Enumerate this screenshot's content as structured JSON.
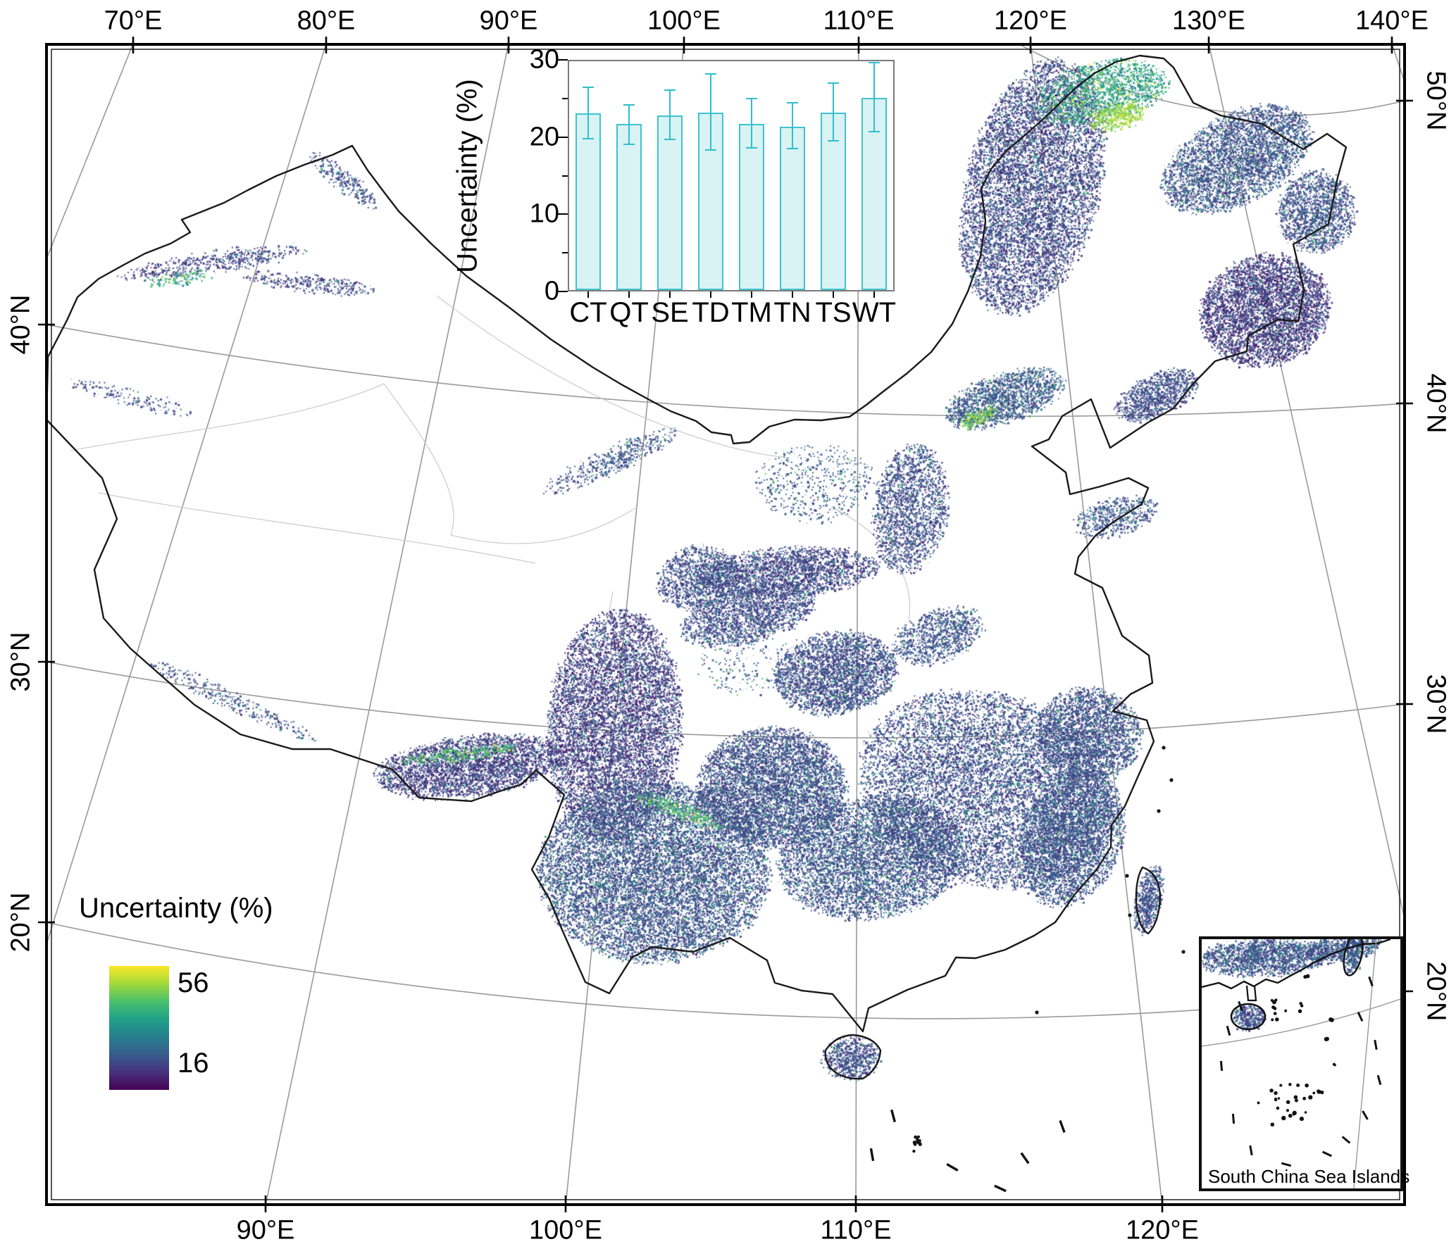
{
  "figure": {
    "kind": "uncertainty map of China with inset bar chart",
    "background": "#ffffff"
  },
  "axes": {
    "top": [
      {
        "label": "70°E"
      },
      {
        "label": "80°E"
      },
      {
        "label": "90°E"
      },
      {
        "label": "100°E"
      },
      {
        "label": "110°E"
      },
      {
        "label": "120°E"
      },
      {
        "label": "130°E"
      },
      {
        "label": "140°E"
      }
    ],
    "bottom": [
      {
        "label": "90°E"
      },
      {
        "label": "100°E"
      },
      {
        "label": "110°E"
      },
      {
        "label": "120°E"
      }
    ],
    "left": [
      {
        "label": "40°N"
      },
      {
        "label": "30°N"
      },
      {
        "label": "20°N"
      }
    ],
    "right": [
      {
        "label": "50°N"
      },
      {
        "label": "40°N"
      },
      {
        "label": "30°N"
      },
      {
        "label": "20°N"
      }
    ]
  },
  "chart_data": {
    "type": "bar",
    "title": "",
    "xlabel": "",
    "ylabel": "Uncertainty (%)",
    "categories": [
      "CT",
      "QT",
      "SE",
      "TD",
      "TM",
      "TN",
      "TS",
      "WT"
    ],
    "values": [
      22.9,
      21.5,
      22.6,
      23.0,
      21.5,
      21.2,
      23.0,
      24.9
    ],
    "error_low": [
      3.2,
      2.5,
      3.0,
      4.8,
      3.0,
      2.8,
      3.6,
      4.3
    ],
    "error_high": [
      3.3,
      2.4,
      3.2,
      4.9,
      3.2,
      3.0,
      3.7,
      4.5
    ],
    "ylim": [
      0,
      30
    ],
    "yticks": [
      0,
      10,
      20,
      30
    ],
    "yticks_minor": [
      5,
      15,
      25
    ],
    "grid": false,
    "legend_position": "none",
    "bar_fill": "#d9f2f3",
    "bar_edge": "#3fc3cf",
    "error_color": "#2fbfcb"
  },
  "legend": {
    "title": "Uncertainty (%)",
    "max_label": "56",
    "min_label": "16",
    "colors_top_to_bottom": [
      "#fde725",
      "#a0da39",
      "#4ac16d",
      "#1fa187",
      "#277f8e",
      "#365c8d",
      "#46327e",
      "#440154"
    ]
  },
  "inset": {
    "label": "South China Sea Islands",
    "regions": [
      [
        "inset-coast",
        88,
        25,
        92,
        26,
        -3,
        2400,
        0.3,
        0.34
      ],
      [
        "inset-coast2",
        198,
        12,
        55,
        18,
        -8,
        900,
        0.3,
        0.32
      ],
      [
        "inset-hainan",
        66,
        110,
        22,
        17,
        0,
        420,
        0.26,
        0.3
      ],
      [
        "inset-taiwan",
        215,
        22,
        11,
        28,
        12,
        300,
        0.3,
        0.3
      ]
    ]
  },
  "map_regions_format": "[name, cx, cy, rx, ry, rot_deg, n_dots, color_bias_0to1, color_spread]",
  "map_regions": [
    [
      "tianshan-a",
      300,
      372,
      135,
      14,
      -8,
      700,
      0.22,
      0.3
    ],
    [
      "tianshan-b",
      440,
      402,
      95,
      11,
      6,
      450,
      0.24,
      0.3
    ],
    [
      "tianshan-green",
      255,
      395,
      45,
      8,
      -8,
      160,
      0.62,
      0.25
    ],
    [
      "altai",
      487,
      255,
      60,
      13,
      38,
      350,
      0.28,
      0.3
    ],
    [
      "kunlun-west",
      190,
      565,
      95,
      12,
      14,
      200,
      0.25,
      0.25
    ],
    [
      "qilian",
      865,
      655,
      105,
      17,
      -25,
      650,
      0.3,
      0.3
    ],
    [
      "hinggan-main",
      1465,
      265,
      95,
      185,
      14,
      11000,
      0.24,
      0.34
    ],
    [
      "hinggan-green",
      1565,
      130,
      95,
      42,
      -12,
      2200,
      0.62,
      0.3
    ],
    [
      "hinggan-yellow",
      1585,
      165,
      40,
      18,
      -15,
      500,
      0.85,
      0.12
    ],
    [
      "xiaoxingan",
      1755,
      225,
      115,
      62,
      -28,
      5200,
      0.3,
      0.32
    ],
    [
      "sanjiang-east",
      1868,
      300,
      55,
      58,
      0,
      2200,
      0.28,
      0.3
    ],
    [
      "changbai",
      1795,
      440,
      92,
      78,
      -18,
      6200,
      0.18,
      0.3
    ],
    [
      "liaodong-hills",
      1642,
      560,
      62,
      28,
      -24,
      1400,
      0.26,
      0.3
    ],
    [
      "yanshan",
      1425,
      565,
      88,
      34,
      -18,
      2300,
      0.33,
      0.35
    ],
    [
      "hebei-green",
      1388,
      592,
      26,
      10,
      -20,
      260,
      0.8,
      0.15
    ],
    [
      "shanxi",
      1292,
      722,
      52,
      92,
      8,
      2600,
      0.26,
      0.32
    ],
    [
      "loess-sparse",
      1155,
      685,
      85,
      55,
      0,
      700,
      0.32,
      0.3
    ],
    [
      "shandong",
      1583,
      733,
      58,
      26,
      -14,
      800,
      0.3,
      0.3
    ],
    [
      "qinling",
      1118,
      812,
      128,
      34,
      -4,
      3200,
      0.23,
      0.3
    ],
    [
      "daba",
      1062,
      872,
      98,
      38,
      -14,
      2600,
      0.26,
      0.3
    ],
    [
      "dabie",
      1332,
      902,
      66,
      36,
      -18,
      1400,
      0.3,
      0.3
    ],
    [
      "wuling",
      1185,
      955,
      88,
      58,
      -8,
      4200,
      0.26,
      0.3
    ],
    [
      "minshan",
      990,
      820,
      58,
      44,
      -18,
      1600,
      0.26,
      0.3
    ],
    [
      "hengduan",
      872,
      1030,
      95,
      165,
      4,
      10500,
      0.2,
      0.32
    ],
    [
      "sichuan-basin",
      1055,
      940,
      68,
      46,
      0,
      260,
      0.35,
      0.3
    ],
    [
      "yunnan",
      928,
      1238,
      165,
      128,
      0,
      15000,
      0.3,
      0.36
    ],
    [
      "yunnan-green",
      965,
      1150,
      70,
      10,
      20,
      420,
      0.72,
      0.2
    ],
    [
      "guizhou",
      1095,
      1118,
      105,
      85,
      0,
      7800,
      0.28,
      0.34
    ],
    [
      "nanling",
      1238,
      1218,
      135,
      85,
      -8,
      7800,
      0.3,
      0.34
    ],
    [
      "jiangnan",
      1400,
      1120,
      185,
      135,
      18,
      12500,
      0.27,
      0.34
    ],
    [
      "zhejiang",
      1545,
      1042,
      75,
      65,
      10,
      3600,
      0.28,
      0.32
    ],
    [
      "fujian-coast",
      1520,
      1190,
      70,
      100,
      22,
      4600,
      0.3,
      0.32
    ],
    [
      "himalaya-se",
      665,
      1088,
      135,
      42,
      -7,
      4600,
      0.2,
      0.3
    ],
    [
      "himalaya-green",
      655,
      1070,
      85,
      8,
      -7,
      380,
      0.72,
      0.18
    ],
    [
      "nepal-band",
      330,
      995,
      135,
      12,
      25,
      480,
      0.28,
      0.28
    ],
    [
      "taiwan",
      1630,
      1278,
      17,
      48,
      13,
      800,
      0.28,
      0.32
    ],
    [
      "hainan",
      1207,
      1502,
      40,
      30,
      0,
      950,
      0.26,
      0.3
    ]
  ],
  "colors": {
    "map_outline": "#1a1a1a",
    "frame": "#000000",
    "graticule": "#9a9a9a",
    "province_border": "#c9c9c9",
    "viridis_stops": [
      [
        0,
        "#440154"
      ],
      [
        0.13,
        "#46327e"
      ],
      [
        0.25,
        "#3f4c8a"
      ],
      [
        0.38,
        "#365c8d"
      ],
      [
        0.5,
        "#277f8e"
      ],
      [
        0.62,
        "#1fa187"
      ],
      [
        0.74,
        "#4ac16d"
      ],
      [
        0.87,
        "#a0da39"
      ],
      [
        1,
        "#fde725"
      ]
    ]
  }
}
